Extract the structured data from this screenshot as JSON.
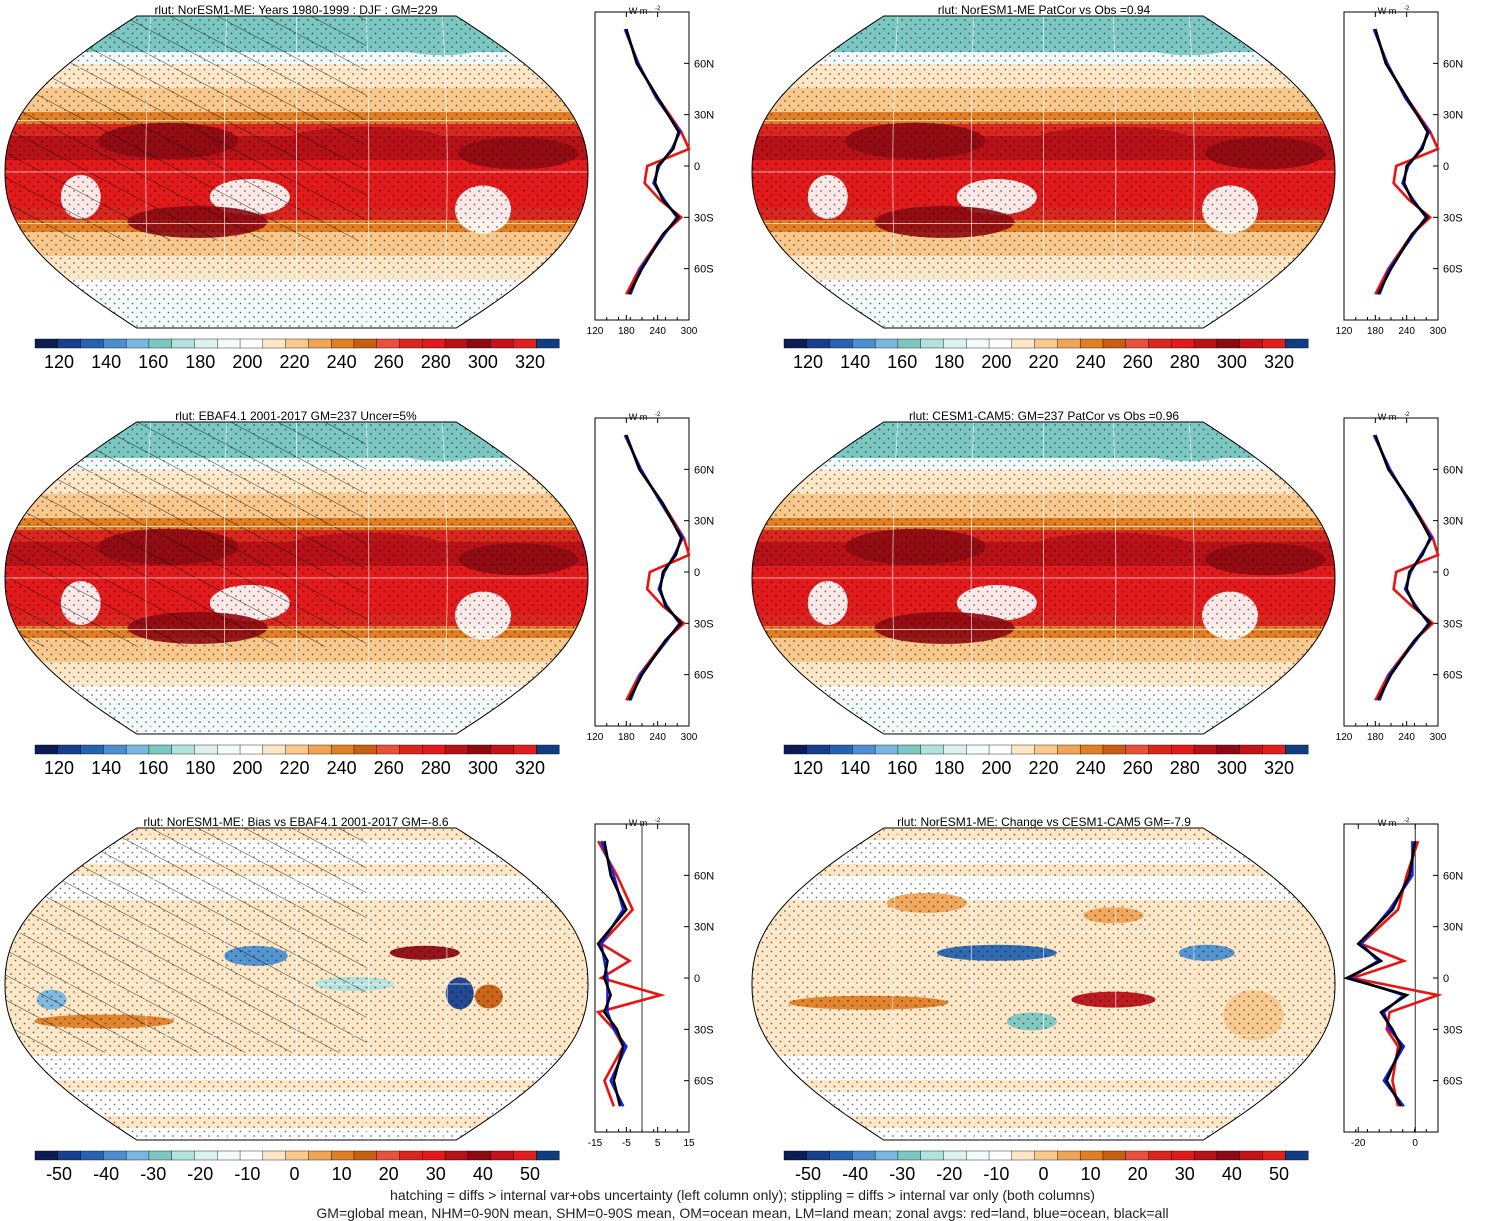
{
  "colors": {
    "palette": [
      "#0b1d54",
      "#183f8e",
      "#2563b0",
      "#4b8fd0",
      "#7ab6e0",
      "#7cc7c2",
      "#b1e2dc",
      "#dcf2ef",
      "#f2fbfa",
      "#ffffff",
      "#fde7c6",
      "#f9c88c",
      "#f0a456",
      "#e07f26",
      "#c85e10",
      "#e8513b",
      "#d9271f",
      "#e31a1c",
      "#b81118",
      "#8e0a12",
      "#c4121a",
      "#e0201f",
      "#0f3e80"
    ],
    "zonal_land": "#ee1111",
    "zonal_ocean": "#1122ee",
    "zonal_all": "#000000"
  },
  "panels": [
    {
      "id": "p1",
      "title": "rlut: NorESM1-ME: Years 1980-1999 : DJF : GM=229",
      "kind": "abs",
      "hatch": true
    },
    {
      "id": "p2",
      "title": "rlut: NorESM1-ME PatCor vs Obs =0.94",
      "kind": "abs",
      "hatch": false
    },
    {
      "id": "p3",
      "title": "rlut: EBAF4.1 2001-2017 GM=237 Uncer=5%",
      "kind": "abs",
      "hatch": true
    },
    {
      "id": "p4",
      "title": "rlut: CESM1-CAM5: GM=237 PatCor vs Obs =0.96",
      "kind": "abs",
      "hatch": false
    },
    {
      "id": "p5",
      "title": "rlut: NorESM1-ME: Bias vs EBAF4.1 2001-2017 GM=-8.6",
      "kind": "diff",
      "hatch": true
    },
    {
      "id": "p6",
      "title": "rlut: NorESM1-ME: Change vs CESM1-CAM5 GM=-7.9",
      "kind": "diff",
      "hatch": false
    }
  ],
  "colorbars": {
    "abs_labels": [
      "120",
      "140",
      "160",
      "180",
      "200",
      "220",
      "240",
      "260",
      "280",
      "300",
      "320"
    ],
    "diff_labels": [
      "-50",
      "-40",
      "-30",
      "-20",
      "-10",
      "0",
      "10",
      "20",
      "30",
      "40",
      "50"
    ]
  },
  "zonal": {
    "unit_label": "W m",
    "unit_exp": "-2",
    "lat_labels": [
      "60N",
      "30N",
      "0",
      "30S",
      "60S"
    ],
    "abs_ticks": [
      "120",
      "180",
      "240",
      "300"
    ],
    "diff_ticks_left": [
      "-15",
      "-5",
      "5",
      "15"
    ],
    "diff_ticks_right": [
      "-20",
      "0"
    ]
  },
  "chart_data": [
    {
      "type": "heatmap",
      "title": "rlut: NorESM1-ME: Years 1980-1999 : DJF : GM=229",
      "projection": "Robinson",
      "colorbar_range": [
        120,
        320
      ],
      "colorbar_ticks": [
        120,
        140,
        160,
        180,
        200,
        220,
        240,
        260,
        280,
        300,
        320
      ],
      "zonal_profile": {
        "ylabels": [
          "60N",
          "30N",
          "0",
          "30S",
          "60S"
        ],
        "xticks": [
          120,
          180,
          240,
          300
        ],
        "lat": [
          80,
          60,
          40,
          20,
          10,
          0,
          -10,
          -20,
          -30,
          -40,
          -60,
          -75
        ],
        "all": [
          180,
          200,
          240,
          280,
          270,
          240,
          235,
          250,
          280,
          250,
          210,
          185
        ],
        "land": [
          180,
          200,
          240,
          285,
          300,
          220,
          215,
          245,
          285,
          250,
          205,
          180
        ]
      }
    },
    {
      "type": "heatmap",
      "title": "rlut: NorESM1-ME PatCor vs Obs =0.94",
      "projection": "Robinson",
      "colorbar_range": [
        120,
        320
      ],
      "colorbar_ticks": [
        120,
        140,
        160,
        180,
        200,
        220,
        240,
        260,
        280,
        300,
        320
      ],
      "zonal_profile": {
        "ylabels": [
          "60N",
          "30N",
          "0",
          "30S",
          "60S"
        ],
        "xticks": [
          120,
          180,
          240,
          300
        ],
        "lat": [
          80,
          60,
          40,
          20,
          10,
          0,
          -10,
          -20,
          -30,
          -40,
          -60,
          -75
        ],
        "all": [
          180,
          200,
          240,
          280,
          270,
          240,
          235,
          250,
          280,
          250,
          210,
          185
        ],
        "land": [
          180,
          200,
          240,
          285,
          300,
          220,
          215,
          245,
          285,
          250,
          205,
          180
        ]
      }
    },
    {
      "type": "heatmap",
      "title": "rlut: EBAF4.1 2001-2017 GM=237 Uncer=5%",
      "projection": "Robinson",
      "colorbar_range": [
        120,
        320
      ],
      "colorbar_ticks": [
        120,
        140,
        160,
        180,
        200,
        220,
        240,
        260,
        280,
        300,
        320
      ],
      "zonal_profile": {
        "ylabels": [
          "60N",
          "30N",
          "0",
          "30S",
          "60S"
        ],
        "xticks": [
          120,
          180,
          240,
          300
        ],
        "lat": [
          80,
          60,
          40,
          20,
          10,
          0,
          -10,
          -20,
          -30,
          -40,
          -60,
          -75
        ],
        "all": [
          180,
          205,
          250,
          285,
          275,
          250,
          245,
          255,
          285,
          255,
          210,
          185
        ],
        "land": [
          180,
          205,
          250,
          290,
          300,
          225,
          220,
          250,
          290,
          255,
          205,
          180
        ]
      }
    },
    {
      "type": "heatmap",
      "title": "rlut: CESM1-CAM5: GM=237 PatCor vs Obs =0.96",
      "projection": "Robinson",
      "colorbar_range": [
        120,
        320
      ],
      "colorbar_ticks": [
        120,
        140,
        160,
        180,
        200,
        220,
        240,
        260,
        280,
        300,
        320
      ],
      "zonal_profile": {
        "ylabels": [
          "60N",
          "30N",
          "0",
          "30S",
          "60S"
        ],
        "xticks": [
          120,
          180,
          240,
          300
        ],
        "lat": [
          80,
          60,
          40,
          20,
          10,
          0,
          -10,
          -20,
          -30,
          -40,
          -60,
          -75
        ],
        "all": [
          180,
          205,
          250,
          285,
          270,
          245,
          240,
          255,
          285,
          255,
          210,
          185
        ],
        "land": [
          180,
          205,
          250,
          290,
          300,
          220,
          215,
          250,
          290,
          255,
          205,
          180
        ]
      }
    },
    {
      "type": "heatmap",
      "title": "rlut: NorESM1-ME: Bias vs EBAF4.1 2001-2017 GM=-8.6",
      "projection": "Robinson",
      "colorbar_range": [
        -50,
        50
      ],
      "colorbar_ticks": [
        -50,
        -40,
        -30,
        -20,
        -10,
        0,
        10,
        20,
        30,
        40,
        50
      ],
      "zonal_profile": {
        "ylabels": [
          "60N",
          "30N",
          "0",
          "30S",
          "60S"
        ],
        "xticks": [
          -15,
          -5,
          5,
          15
        ],
        "lat": [
          80,
          60,
          40,
          20,
          10,
          0,
          -10,
          -20,
          -30,
          -40,
          -60,
          -75
        ],
        "all": [
          -12,
          -10,
          -5,
          -14,
          -11,
          -12,
          -10,
          -12,
          -8,
          -6,
          -9,
          -7
        ],
        "land": [
          -14,
          -8,
          -3,
          -13,
          -4,
          -13,
          6,
          -14,
          -9,
          -6,
          -12,
          -9
        ]
      }
    },
    {
      "type": "heatmap",
      "title": "rlut: NorESM1-ME: Change vs CESM1-CAM5 GM=-7.9",
      "projection": "Robinson",
      "colorbar_range": [
        -50,
        50
      ],
      "colorbar_ticks": [
        -50,
        -40,
        -30,
        -20,
        -10,
        0,
        10,
        20,
        30,
        40,
        50
      ],
      "zonal_profile": {
        "ylabels": [
          "60N",
          "30N",
          "0",
          "30S",
          "60S"
        ],
        "xticks": [
          -20,
          0
        ],
        "lat": [
          80,
          60,
          40,
          20,
          10,
          0,
          -10,
          -20,
          -30,
          -40,
          -60,
          -75
        ],
        "all": [
          0,
          -2,
          -8,
          -20,
          -12,
          -24,
          -3,
          -12,
          -8,
          -5,
          -10,
          -5
        ],
        "land": [
          1,
          -3,
          -6,
          -19,
          -4,
          -22,
          8,
          -9,
          -10,
          -6,
          -8,
          -6
        ]
      }
    }
  ],
  "footer": {
    "line1": "hatching = diffs > internal var+obs uncertainty (left column only); stippling = diffs > internal var only (both columns)",
    "line2": "GM=global mean, NHM=0-90N mean, SHM=0-90S mean, OM=ocean mean, LM=land mean; zonal avgs: red=land, blue=ocean, black=all"
  }
}
